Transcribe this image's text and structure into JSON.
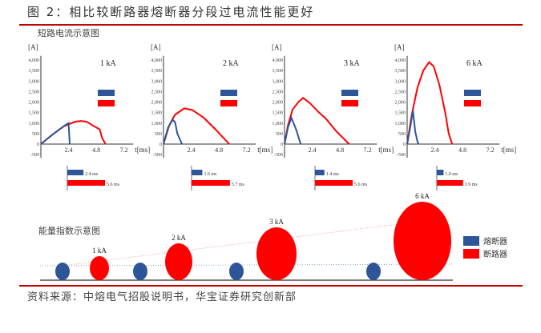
{
  "title": "图 2：相比较断路器熔断器分段过电流性能更好",
  "source": "资料来源：中熔电气招股说明书，华宝证券研究创新部",
  "colors": {
    "fuse": "#2e5597",
    "breaker": "#ff0000",
    "rule": "#c00000"
  },
  "chart_data": [
    {
      "type": "line",
      "title": "短路电流示意图",
      "ylabel": "[A]",
      "xlabel": "t[ms]",
      "ylim": [
        -500,
        4000
      ],
      "xlim": [
        0,
        8
      ],
      "yticks": [
        "-500",
        "0",
        "500",
        "1,000",
        "1,500",
        "2,000",
        "2,500",
        "3,000",
        "3,500",
        "4,000"
      ],
      "xticks": [
        "2.4",
        "4.8",
        "7.2"
      ],
      "panels": [
        {
          "label": "1 kA",
          "fuse": [
            [
              0,
              0
            ],
            [
              1,
              450
            ],
            [
              2.0,
              860
            ],
            [
              2.4,
              1000
            ],
            [
              2.45,
              500
            ],
            [
              2.5,
              0
            ]
          ],
          "breaker": [
            [
              0,
              0
            ],
            [
              1,
              450
            ],
            [
              2,
              850
            ],
            [
              3,
              1070
            ],
            [
              3.5,
              1100
            ],
            [
              4,
              1060
            ],
            [
              4.6,
              850
            ],
            [
              5.1,
              700
            ],
            [
              5.3,
              300
            ],
            [
              5.6,
              0
            ]
          ],
          "fuse_time": "2.4 ms",
          "breaker_time": "5.6 ms",
          "fuse_ms": 2.4,
          "breaker_ms": 5.6
        },
        {
          "label": "2 kA",
          "fuse": [
            [
              0,
              0
            ],
            [
              0.4,
              800
            ],
            [
              0.8,
              1150
            ],
            [
              1.0,
              1050
            ],
            [
              1.2,
              500
            ],
            [
              1.6,
              0
            ]
          ],
          "breaker": [
            [
              0,
              0
            ],
            [
              0.5,
              900
            ],
            [
              1,
              1400
            ],
            [
              1.8,
              1700
            ],
            [
              2.5,
              1620
            ],
            [
              3.5,
              1250
            ],
            [
              4.5,
              700
            ],
            [
              5.7,
              0
            ]
          ],
          "fuse_time": "1.6 ms",
          "breaker_time": "5.7 ms",
          "fuse_ms": 1.6,
          "breaker_ms": 5.7
        },
        {
          "label": "3 kA",
          "fuse": [
            [
              0,
              0
            ],
            [
              0.3,
              800
            ],
            [
              0.6,
              1250
            ],
            [
              1.0,
              700
            ],
            [
              1.4,
              0
            ]
          ],
          "breaker": [
            [
              0,
              0
            ],
            [
              0.3,
              900
            ],
            [
              0.7,
              1650
            ],
            [
              1.2,
              2000
            ],
            [
              1.6,
              2200
            ],
            [
              2.2,
              1950
            ],
            [
              2.9,
              1550
            ],
            [
              3.6,
              1200
            ],
            [
              4.5,
              600
            ],
            [
              5.6,
              0
            ]
          ],
          "fuse_time": "1.4 ms",
          "breaker_time": "5.6 ms",
          "fuse_ms": 1.4,
          "breaker_ms": 5.6
        },
        {
          "label": "6 kA",
          "fuse": [
            [
              0,
              0
            ],
            [
              0.3,
              900
            ],
            [
              0.5,
              1600
            ],
            [
              0.7,
              600
            ],
            [
              0.9,
              100
            ],
            [
              1.0,
              0
            ]
          ],
          "breaker": [
            [
              0,
              0
            ],
            [
              0.4,
              1400
            ],
            [
              0.9,
              2700
            ],
            [
              1.4,
              3500
            ],
            [
              1.9,
              3900
            ],
            [
              2.3,
              3700
            ],
            [
              2.8,
              2800
            ],
            [
              3.3,
              1500
            ],
            [
              3.6,
              500
            ],
            [
              3.9,
              0
            ]
          ],
          "fuse_time": "1.0 ms",
          "breaker_time": "3.9 ms",
          "fuse_ms": 1.0,
          "breaker_ms": 3.9
        }
      ]
    },
    {
      "type": "bubble",
      "title": "能量指数示意图",
      "legend": [
        "熔断器",
        "断路器"
      ],
      "legend_position": "right",
      "categories": [
        "1 kA",
        "2 kA",
        "3 kA",
        "6 kA"
      ]
    }
  ]
}
